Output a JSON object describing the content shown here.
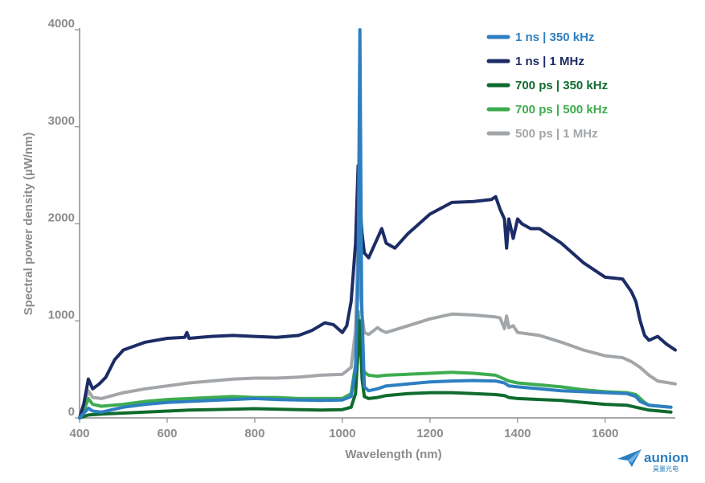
{
  "chart_data": {
    "type": "line",
    "xlabel": "Wavelength (nm)",
    "ylabel": "Spectral power density (µW/nm)",
    "xlim": [
      400,
      1760
    ],
    "ylim": [
      0,
      4000
    ],
    "xticks": [
      400,
      600,
      800,
      1000,
      1200,
      1400,
      1600
    ],
    "yticks": [
      0,
      1000,
      2000,
      3000,
      4000
    ],
    "grid": false,
    "legend_position": "top-right",
    "series": [
      {
        "name": "1 ns | 350 kHz",
        "color": "#2e7fc1",
        "x": [
          400,
          410,
          420,
          430,
          450,
          470,
          500,
          550,
          600,
          650,
          700,
          750,
          800,
          850,
          900,
          950,
          1000,
          1020,
          1030,
          1036,
          1040,
          1044,
          1050,
          1060,
          1080,
          1100,
          1150,
          1200,
          1250,
          1300,
          1350,
          1370,
          1380,
          1400,
          1450,
          1500,
          1550,
          1600,
          1650,
          1670,
          1680,
          1700,
          1750
        ],
        "y": [
          0,
          50,
          100,
          70,
          60,
          80,
          110,
          140,
          160,
          170,
          180,
          190,
          200,
          190,
          185,
          180,
          185,
          220,
          500,
          1500,
          4000,
          1200,
          320,
          280,
          300,
          330,
          350,
          370,
          380,
          385,
          380,
          360,
          330,
          320,
          300,
          280,
          270,
          260,
          250,
          220,
          170,
          130,
          110
        ]
      },
      {
        "name": "1 ns | 1 MHz",
        "color": "#1c2c66",
        "x": [
          400,
          410,
          420,
          430,
          445,
          460,
          480,
          500,
          550,
          600,
          640,
          645,
          650,
          700,
          750,
          800,
          850,
          900,
          930,
          960,
          980,
          1000,
          1010,
          1020,
          1030,
          1036,
          1040,
          1045,
          1050,
          1060,
          1075,
          1090,
          1100,
          1120,
          1150,
          1200,
          1250,
          1300,
          1340,
          1350,
          1360,
          1370,
          1375,
          1380,
          1390,
          1400,
          1410,
          1430,
          1450,
          1500,
          1550,
          1600,
          1640,
          1660,
          1670,
          1680,
          1690,
          1700,
          1720,
          1740,
          1760
        ],
        "y": [
          0,
          150,
          400,
          300,
          350,
          420,
          600,
          700,
          780,
          820,
          830,
          880,
          820,
          840,
          850,
          840,
          830,
          850,
          900,
          980,
          960,
          880,
          950,
          1200,
          1800,
          2600,
          2200,
          1900,
          1700,
          1650,
          1800,
          1950,
          1800,
          1750,
          1900,
          2100,
          2220,
          2230,
          2250,
          2280,
          2150,
          2050,
          1750,
          2050,
          1850,
          2050,
          2000,
          1950,
          1950,
          1800,
          1600,
          1450,
          1430,
          1300,
          1200,
          1000,
          850,
          800,
          840,
          760,
          700
        ]
      },
      {
        "name": "700 ps | 350 kHz",
        "color": "#0f6b2e",
        "x": [
          400,
          420,
          450,
          500,
          550,
          600,
          650,
          700,
          750,
          800,
          850,
          900,
          950,
          1000,
          1020,
          1030,
          1036,
          1040,
          1045,
          1050,
          1060,
          1080,
          1100,
          1150,
          1200,
          1250,
          1300,
          1350,
          1370,
          1380,
          1400,
          1450,
          1500,
          1550,
          1600,
          1650,
          1680,
          1700,
          1750
        ],
        "y": [
          0,
          30,
          40,
          50,
          60,
          70,
          80,
          85,
          90,
          95,
          90,
          85,
          80,
          85,
          110,
          250,
          700,
          1000,
          400,
          220,
          200,
          210,
          230,
          250,
          260,
          260,
          250,
          240,
          230,
          210,
          200,
          190,
          180,
          160,
          140,
          130,
          100,
          80,
          60
        ]
      },
      {
        "name": "700 ps | 500 kHz",
        "color": "#3dac4f",
        "x": [
          400,
          410,
          420,
          430,
          450,
          500,
          550,
          600,
          650,
          700,
          750,
          800,
          850,
          900,
          950,
          1000,
          1020,
          1030,
          1036,
          1040,
          1045,
          1050,
          1060,
          1080,
          1100,
          1150,
          1200,
          1250,
          1300,
          1350,
          1360,
          1380,
          1400,
          1450,
          1500,
          1550,
          1600,
          1650,
          1670,
          1690,
          1700,
          1750
        ],
        "y": [
          0,
          80,
          200,
          140,
          120,
          140,
          170,
          190,
          200,
          210,
          220,
          210,
          210,
          200,
          200,
          200,
          250,
          550,
          1100,
          700,
          580,
          470,
          440,
          430,
          440,
          450,
          460,
          470,
          460,
          440,
          420,
          380,
          360,
          340,
          320,
          290,
          270,
          260,
          240,
          160,
          130,
          110
        ]
      },
      {
        "name": "500 ps | 1 MHz",
        "color": "#a3a6a9",
        "x": [
          400,
          410,
          420,
          430,
          450,
          500,
          550,
          600,
          650,
          700,
          750,
          800,
          850,
          900,
          950,
          1000,
          1020,
          1030,
          1036,
          1040,
          1045,
          1050,
          1060,
          1080,
          1090,
          1100,
          1150,
          1200,
          1250,
          1300,
          1350,
          1360,
          1370,
          1375,
          1380,
          1390,
          1400,
          1450,
          1500,
          1550,
          1600,
          1640,
          1660,
          1680,
          1700,
          1720,
          1760
        ],
        "y": [
          0,
          120,
          280,
          210,
          200,
          260,
          300,
          330,
          360,
          380,
          400,
          410,
          410,
          420,
          440,
          450,
          520,
          900,
          1800,
          1400,
          1050,
          880,
          860,
          930,
          900,
          880,
          950,
          1020,
          1070,
          1060,
          1040,
          1030,
          920,
          1050,
          930,
          950,
          880,
          850,
          780,
          700,
          640,
          620,
          580,
          520,
          440,
          380,
          350
        ]
      }
    ]
  },
  "logo": {
    "name": "aunion",
    "subtitle": "昊量光电"
  }
}
